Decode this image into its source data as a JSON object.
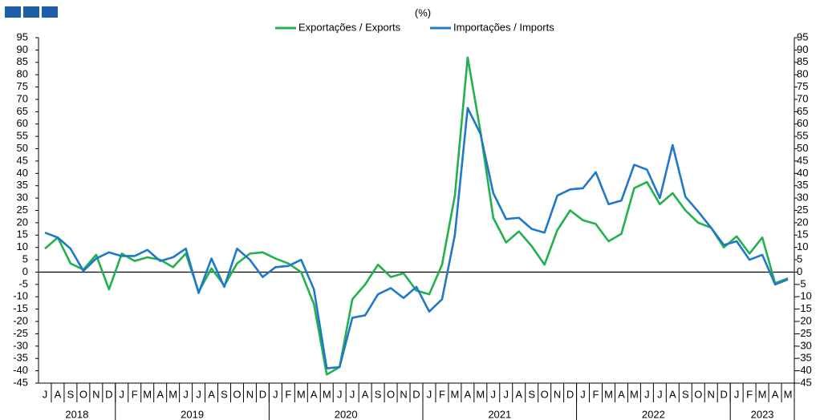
{
  "chart_data": {
    "type": "line",
    "subtitle": "(%)",
    "categories": [
      "J",
      "A",
      "S",
      "O",
      "N",
      "D",
      "J",
      "F",
      "M",
      "A",
      "M",
      "J",
      "J",
      "A",
      "S",
      "O",
      "N",
      "D",
      "J",
      "F",
      "M",
      "A",
      "M",
      "J",
      "J",
      "A",
      "S",
      "O",
      "N",
      "D",
      "J",
      "F",
      "M",
      "A",
      "M",
      "J",
      "J",
      "A",
      "S",
      "O",
      "N",
      "D",
      "J",
      "F",
      "M",
      "A",
      "M",
      "J",
      "J",
      "A",
      "S",
      "O",
      "N",
      "D",
      "J",
      "F",
      "M",
      "A",
      "M"
    ],
    "x_groups": [
      "2018",
      "2019",
      "2020",
      "2021",
      "2022",
      "2023"
    ],
    "series": [
      {
        "name": "Exportações / Exports",
        "color": "#22b14c",
        "values": [
          9.5,
          14,
          3.5,
          1,
          7,
          -7,
          7.5,
          4.5,
          6,
          5,
          2,
          7.5,
          -8,
          1.5,
          -5.5,
          3.5,
          7.5,
          8,
          5.5,
          3.5,
          0,
          -13,
          -41.5,
          -38.5,
          -11,
          -5,
          3,
          -2,
          -0.5,
          -7.5,
          -9,
          3,
          31,
          87,
          57,
          22,
          12,
          16.5,
          10.5,
          3,
          17,
          25,
          21,
          19.5,
          12.5,
          15.5,
          34,
          36.5,
          27.5,
          32,
          25,
          20,
          18,
          10,
          14.5,
          7.5,
          14,
          -4.5,
          -2.5
        ]
      },
      {
        "name": "Importações / Imports",
        "color": "#1f78c8",
        "values": [
          16,
          14,
          9.5,
          0.5,
          5.5,
          8,
          6.5,
          6.5,
          9,
          4.5,
          6,
          9.5,
          -8.5,
          5.5,
          -6,
          9.5,
          5,
          -2,
          2,
          2.5,
          5,
          -7,
          -39,
          -38.5,
          -18.5,
          -17.5,
          -9,
          -6.5,
          -10.5,
          -6,
          -16,
          -11,
          15,
          66.5,
          56,
          32,
          21.5,
          22,
          17.5,
          16,
          31,
          33.5,
          34,
          40.5,
          27.5,
          29,
          43.5,
          41.5,
          30,
          51.5,
          30.5,
          24.5,
          18,
          11,
          12.5,
          5,
          7,
          -5,
          -3
        ]
      }
    ],
    "ylim": [
      -45,
      95
    ],
    "yticks": [
      -45,
      -40,
      -35,
      -30,
      -25,
      -20,
      -15,
      -10,
      -5,
      0,
      5,
      10,
      15,
      20,
      25,
      30,
      35,
      40,
      45,
      50,
      55,
      60,
      65,
      70,
      75,
      80,
      85,
      90,
      95
    ],
    "zero_line": true
  }
}
